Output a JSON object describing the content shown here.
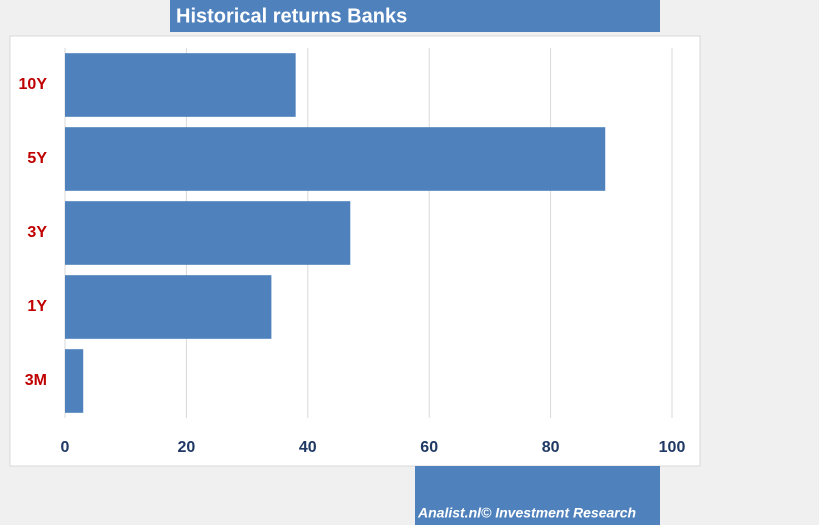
{
  "chart_data": {
    "type": "bar",
    "orientation": "horizontal",
    "title": "Historical returns Banks",
    "categories": [
      "10Y",
      "5Y",
      "3Y",
      "1Y",
      "3M"
    ],
    "values": [
      38,
      89,
      47,
      34,
      3
    ],
    "color": "#4f81bd",
    "xlim": [
      0,
      100
    ],
    "xticks": [
      0,
      20,
      40,
      60,
      80,
      100
    ],
    "grid": true,
    "source": "Analist.nl© Investment Research"
  }
}
